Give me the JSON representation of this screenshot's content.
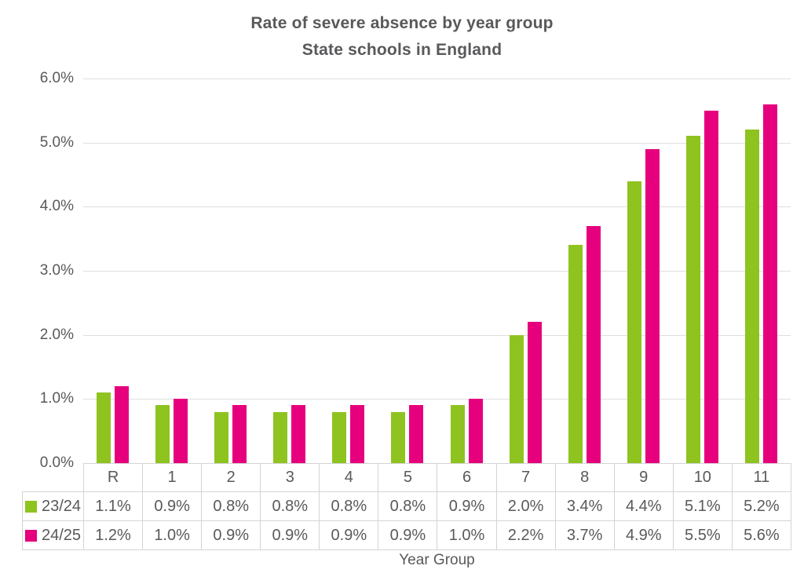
{
  "chart_data": {
    "type": "bar",
    "title": "Rate of severe absence by year group",
    "subtitle": "State schools in England",
    "xlabel": "Year Group",
    "ylabel": "",
    "categories": [
      "R",
      "1",
      "2",
      "3",
      "4",
      "5",
      "6",
      "7",
      "8",
      "9",
      "10",
      "11"
    ],
    "series": [
      {
        "name": "23/24",
        "color": "#8FC320",
        "values": [
          1.1,
          0.9,
          0.8,
          0.8,
          0.8,
          0.8,
          0.9,
          2.0,
          3.4,
          4.4,
          5.1,
          5.2
        ],
        "labels": [
          "1.1%",
          "0.9%",
          "0.8%",
          "0.8%",
          "0.8%",
          "0.8%",
          "0.9%",
          "2.0%",
          "3.4%",
          "4.4%",
          "5.1%",
          "5.2%"
        ]
      },
      {
        "name": "24/25",
        "color": "#E6007E",
        "values": [
          1.2,
          1.0,
          0.9,
          0.9,
          0.9,
          0.9,
          1.0,
          2.2,
          3.7,
          4.9,
          5.5,
          5.6
        ],
        "labels": [
          "1.2%",
          "1.0%",
          "0.9%",
          "0.9%",
          "0.9%",
          "0.9%",
          "1.0%",
          "2.2%",
          "3.7%",
          "4.9%",
          "5.5%",
          "5.6%"
        ]
      }
    ],
    "ylim": [
      0,
      6
    ],
    "y_tick_labels": [
      "6.0%",
      "5.0%",
      "4.0%",
      "3.0%",
      "2.0%",
      "1.0%",
      "0.0%"
    ],
    "grid": true,
    "legend_position": "table-rows-left"
  },
  "colors": {
    "title_text": "#58595B",
    "axis_text": "#595959",
    "gridline": "#DEDEDE",
    "table_border": "#D4D4D4"
  }
}
